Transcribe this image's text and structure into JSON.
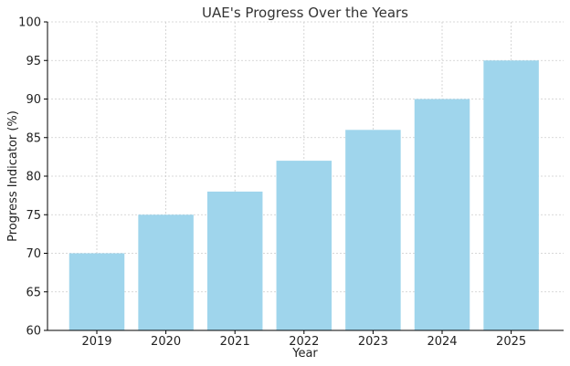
{
  "chart_data": {
    "type": "bar",
    "title": "UAE's Progress Over the Years",
    "xlabel": "Year",
    "ylabel": "Progress Indicator (%)",
    "categories": [
      "2019",
      "2020",
      "2021",
      "2022",
      "2023",
      "2024",
      "2025"
    ],
    "values": [
      70,
      75,
      78,
      82,
      86,
      90,
      95
    ],
    "ylim": [
      60,
      100
    ],
    "yticks": [
      60,
      65,
      70,
      75,
      80,
      85,
      90,
      95,
      100
    ],
    "grid": true,
    "bar_color": "#9fd5ec"
  }
}
